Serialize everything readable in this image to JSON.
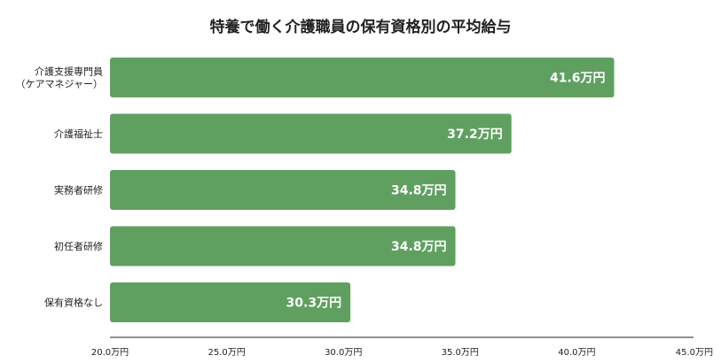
{
  "chart_data": {
    "type": "bar",
    "orientation": "horizontal",
    "title": "特養で働く介護職員の保有資格別の平均給与",
    "categories": [
      [
        "介護支援専門員",
        "（ケアマネジャー）"
      ],
      [
        "介護福祉士"
      ],
      [
        "実務者研修"
      ],
      [
        "初任者研修"
      ],
      [
        "保有資格なし"
      ]
    ],
    "values": [
      41.6,
      37.2,
      34.8,
      34.8,
      30.3
    ],
    "value_labels": [
      "41.6万円",
      "37.2万円",
      "34.8万円",
      "34.8万円",
      "30.3万円"
    ],
    "xlim": [
      20.0,
      45.0
    ],
    "ticks": [
      20.0,
      25.0,
      30.0,
      35.0,
      40.0,
      45.0
    ],
    "tick_labels": [
      "20.0万円",
      "25.0万円",
      "30.0万円",
      "35.0万円",
      "40.0万円",
      "45.0万円"
    ],
    "grid": false,
    "legend": "none",
    "bar_color": "#5fa060"
  }
}
